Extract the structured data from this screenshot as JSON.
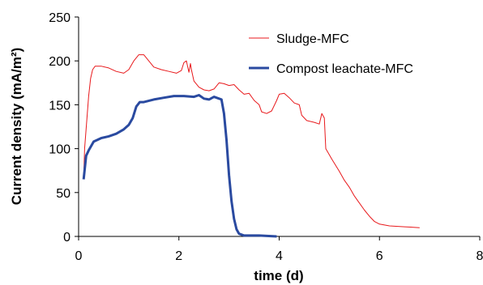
{
  "chart_data": {
    "type": "line",
    "title": "",
    "xlabel": "time (d)",
    "ylabel": "Current density (mA/m²)",
    "xlim": [
      0,
      8
    ],
    "ylim": [
      0,
      250
    ],
    "xticks": [
      0,
      2,
      4,
      6,
      8
    ],
    "yticks": [
      0,
      50,
      100,
      150,
      200,
      250
    ],
    "grid": false,
    "legend_position": "top-right",
    "series": [
      {
        "name": "Sludge-MFC",
        "color": "#e8191c",
        "style": "thin",
        "points": [
          [
            0.1,
            65
          ],
          [
            0.12,
            100
          ],
          [
            0.16,
            130
          ],
          [
            0.2,
            160
          ],
          [
            0.24,
            180
          ],
          [
            0.28,
            190
          ],
          [
            0.33,
            194
          ],
          [
            0.45,
            194
          ],
          [
            0.6,
            192
          ],
          [
            0.75,
            188
          ],
          [
            0.9,
            186
          ],
          [
            1.0,
            190
          ],
          [
            1.1,
            200
          ],
          [
            1.2,
            207
          ],
          [
            1.3,
            207
          ],
          [
            1.4,
            200
          ],
          [
            1.5,
            193
          ],
          [
            1.65,
            190
          ],
          [
            1.8,
            188
          ],
          [
            1.95,
            186
          ],
          [
            2.05,
            189
          ],
          [
            2.1,
            198
          ],
          [
            2.15,
            200
          ],
          [
            2.2,
            187
          ],
          [
            2.23,
            197
          ],
          [
            2.25,
            190
          ],
          [
            2.3,
            177
          ],
          [
            2.4,
            170
          ],
          [
            2.5,
            167
          ],
          [
            2.6,
            166
          ],
          [
            2.7,
            168
          ],
          [
            2.8,
            175
          ],
          [
            2.9,
            174
          ],
          [
            3.0,
            172
          ],
          [
            3.1,
            173
          ],
          [
            3.2,
            167
          ],
          [
            3.3,
            162
          ],
          [
            3.4,
            163
          ],
          [
            3.5,
            155
          ],
          [
            3.6,
            150
          ],
          [
            3.65,
            142
          ],
          [
            3.75,
            140
          ],
          [
            3.85,
            143
          ],
          [
            3.95,
            155
          ],
          [
            4.0,
            162
          ],
          [
            4.1,
            163
          ],
          [
            4.2,
            158
          ],
          [
            4.3,
            152
          ],
          [
            4.4,
            150
          ],
          [
            4.45,
            138
          ],
          [
            4.55,
            132
          ],
          [
            4.7,
            130
          ],
          [
            4.8,
            128
          ],
          [
            4.85,
            140
          ],
          [
            4.9,
            135
          ],
          [
            4.93,
            100
          ],
          [
            5.05,
            88
          ],
          [
            5.2,
            74
          ],
          [
            5.3,
            64
          ],
          [
            5.4,
            56
          ],
          [
            5.5,
            46
          ],
          [
            5.6,
            38
          ],
          [
            5.7,
            30
          ],
          [
            5.8,
            23
          ],
          [
            5.9,
            17
          ],
          [
            6.0,
            14
          ],
          [
            6.2,
            12
          ],
          [
            6.5,
            11
          ],
          [
            6.8,
            10
          ]
        ]
      },
      {
        "name": "Compost leachate-MFC",
        "color": "#2a4aa0",
        "style": "thick",
        "points": [
          [
            0.1,
            65
          ],
          [
            0.15,
            92
          ],
          [
            0.2,
            98
          ],
          [
            0.3,
            108
          ],
          [
            0.45,
            112
          ],
          [
            0.6,
            114
          ],
          [
            0.75,
            117
          ],
          [
            0.9,
            122
          ],
          [
            1.0,
            127
          ],
          [
            1.08,
            135
          ],
          [
            1.15,
            148
          ],
          [
            1.22,
            153
          ],
          [
            1.3,
            153
          ],
          [
            1.5,
            156
          ],
          [
            1.7,
            158
          ],
          [
            1.9,
            160
          ],
          [
            2.1,
            160
          ],
          [
            2.3,
            159
          ],
          [
            2.4,
            161
          ],
          [
            2.5,
            157
          ],
          [
            2.6,
            156
          ],
          [
            2.7,
            159
          ],
          [
            2.8,
            157
          ],
          [
            2.85,
            156
          ],
          [
            2.9,
            140
          ],
          [
            2.95,
            110
          ],
          [
            3.0,
            70
          ],
          [
            3.05,
            40
          ],
          [
            3.1,
            20
          ],
          [
            3.15,
            8
          ],
          [
            3.2,
            3
          ],
          [
            3.3,
            1
          ],
          [
            3.6,
            1
          ],
          [
            3.95,
            0
          ]
        ]
      }
    ]
  }
}
